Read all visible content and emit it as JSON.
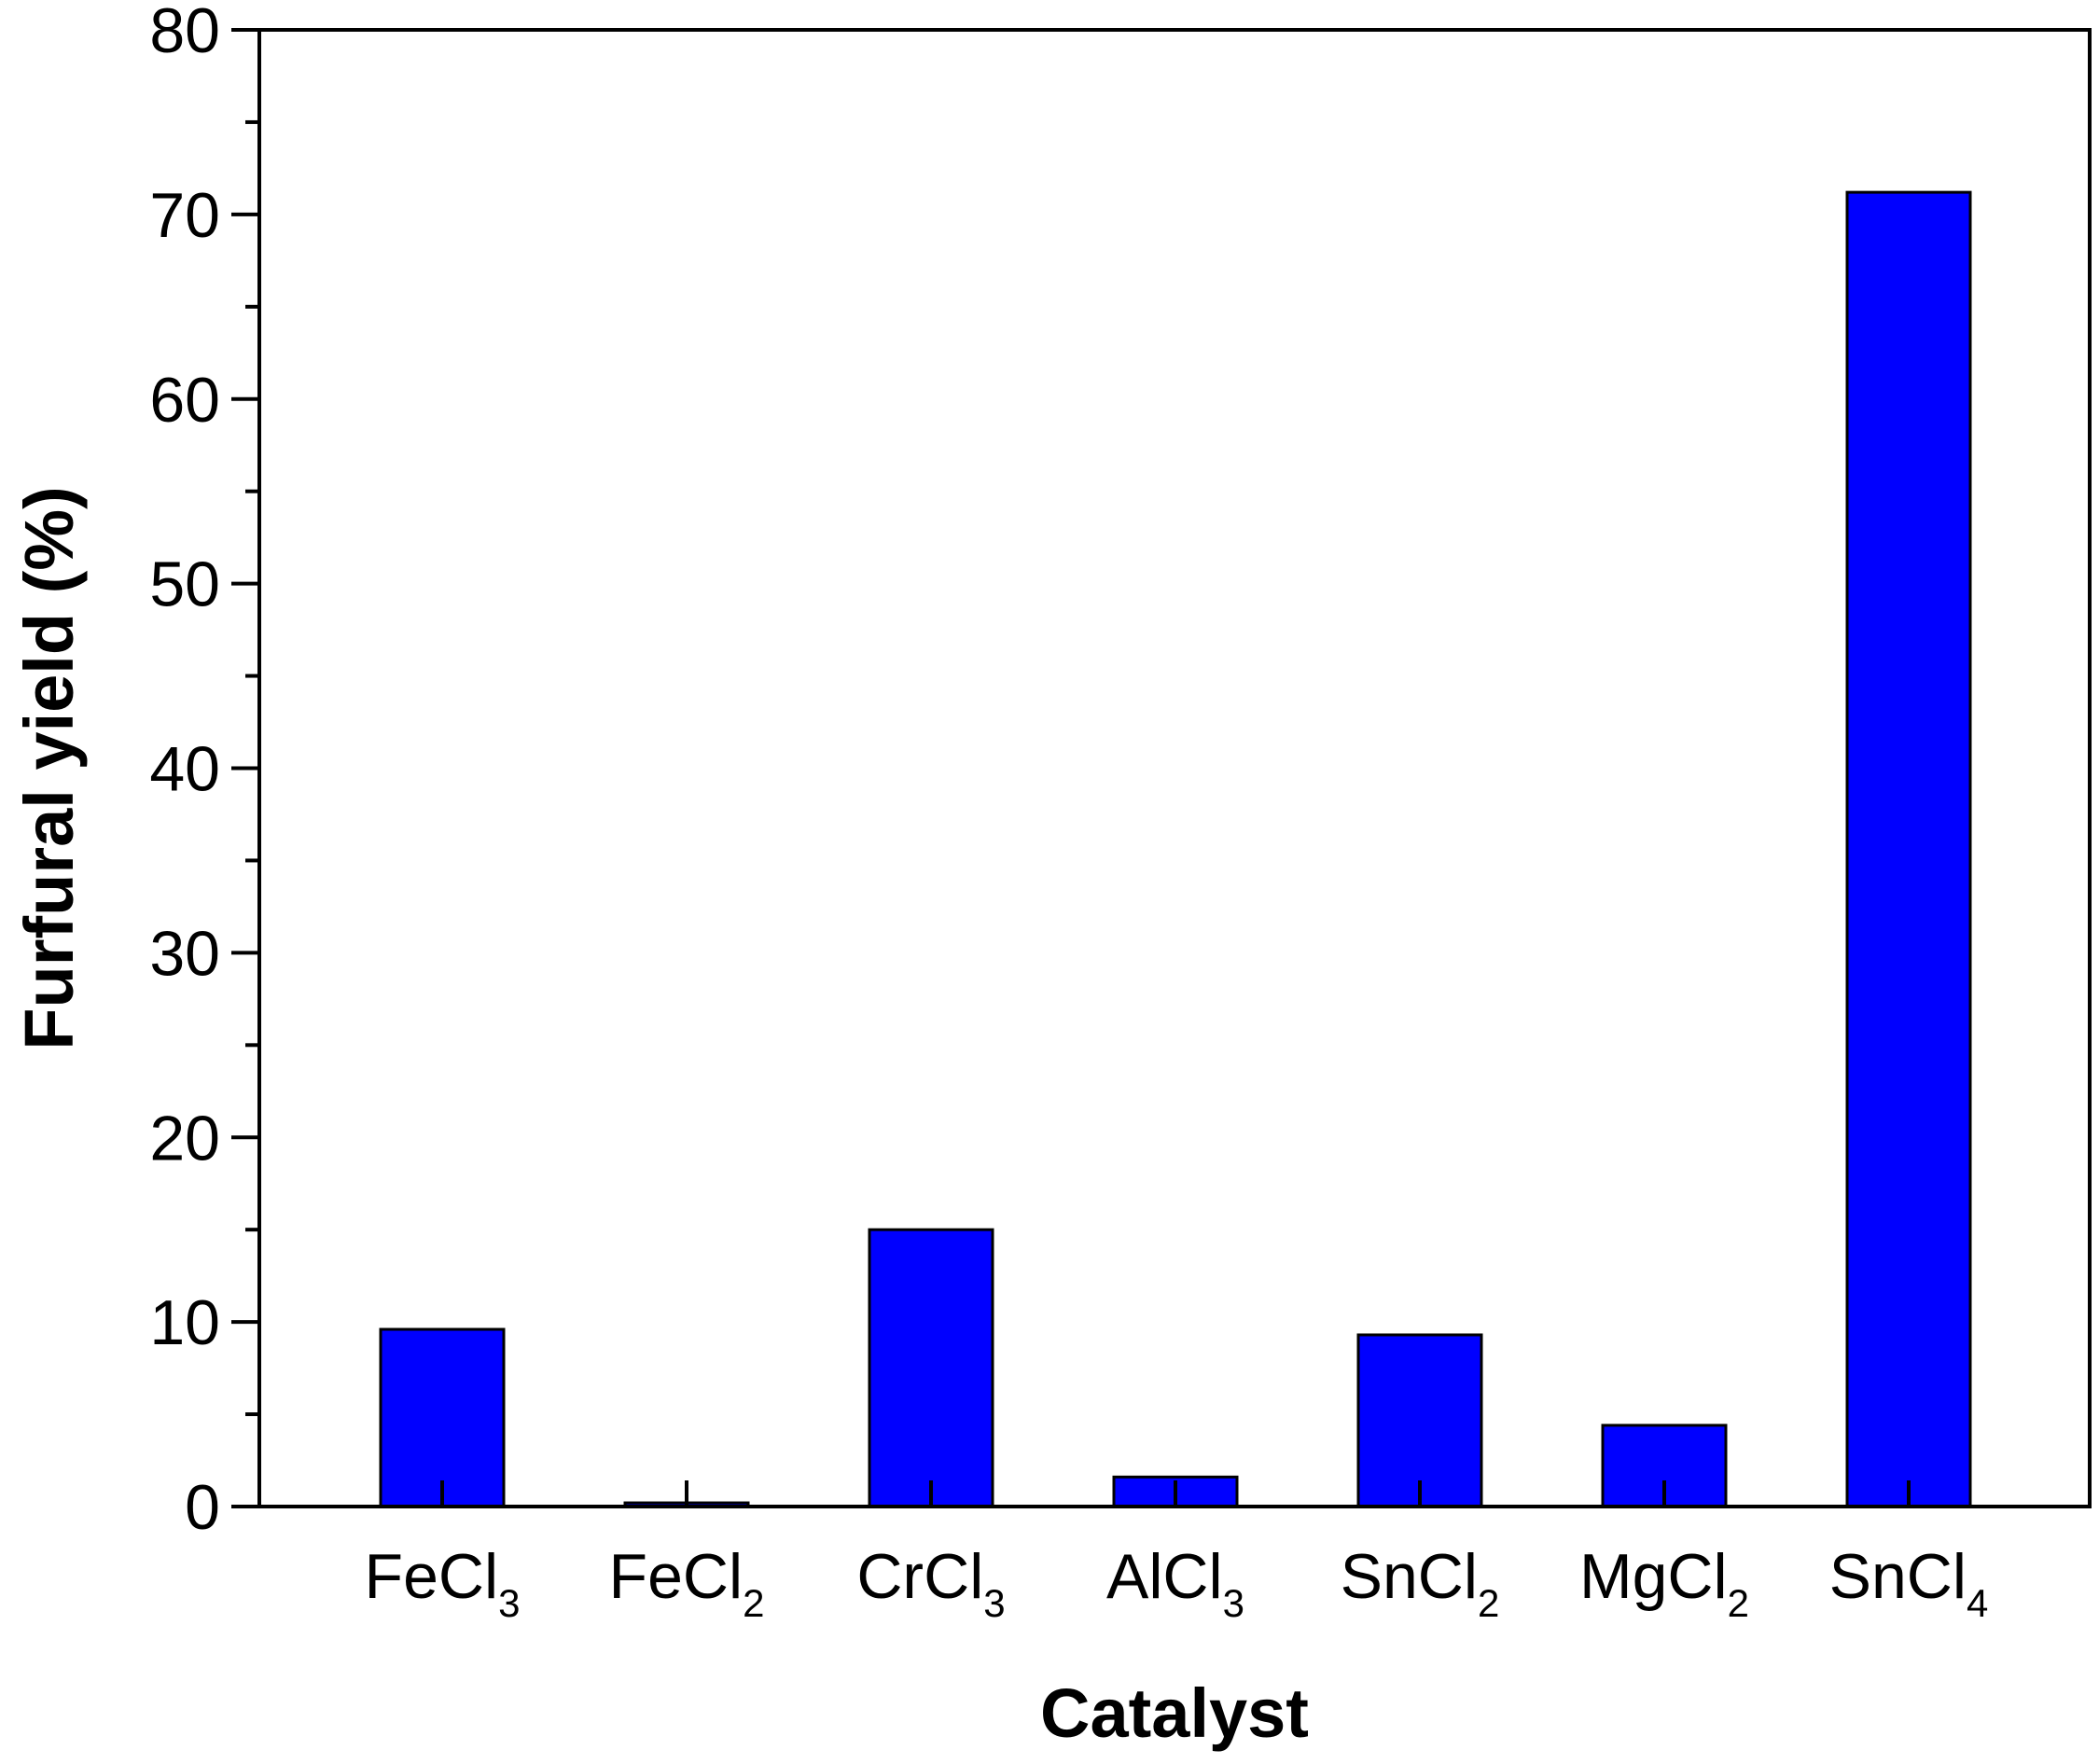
{
  "chart_data": {
    "type": "bar",
    "categories": [
      {
        "base": "FeCl",
        "sub": "3"
      },
      {
        "base": "FeCl",
        "sub": "2"
      },
      {
        "base": "CrCl",
        "sub": "3"
      },
      {
        "base": "AlCl",
        "sub": "3"
      },
      {
        "base": "SnCl",
        "sub": "2"
      },
      {
        "base": "MgCl",
        "sub": "2"
      },
      {
        "base": "SnCl",
        "sub": "4"
      }
    ],
    "values": [
      9.6,
      0.2,
      15.0,
      1.6,
      9.3,
      4.4,
      71.2
    ],
    "xlabel": "Catalyst",
    "ylabel": "Furfural yield (%)",
    "ylim": [
      0,
      80
    ],
    "yticks": [
      0,
      10,
      20,
      30,
      40,
      50,
      60,
      70,
      80
    ],
    "yminor_step": 5,
    "grid": false,
    "legend": "none",
    "colors": {
      "bar_fill": "#0000ff",
      "bar_edge": "#000000",
      "axis": "#000000"
    }
  }
}
